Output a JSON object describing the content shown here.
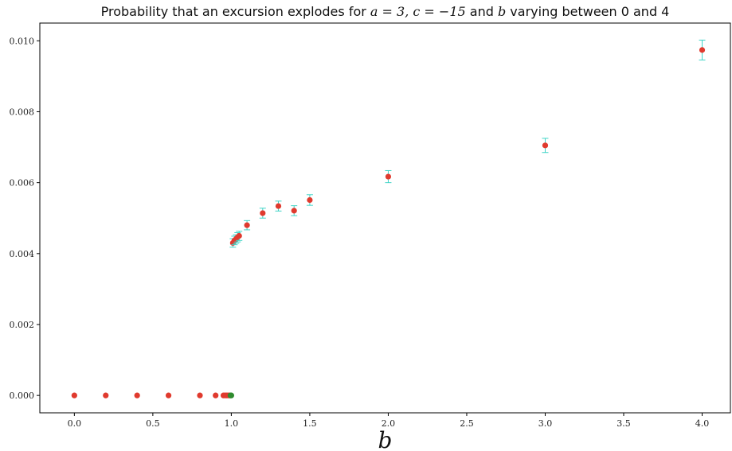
{
  "chart_data": {
    "type": "scatter",
    "title_parts": [
      {
        "text": "Probability that an excursion explodes for ",
        "math": false
      },
      {
        "text": "a = 3, c = −15",
        "math": true
      },
      {
        "text": " and ",
        "math": false
      },
      {
        "text": "b",
        "math": true
      },
      {
        "text": " varying between 0 and 4",
        "math": false
      }
    ],
    "title": "Probability that an excursion explodes for a = 3, c = −15 and b varying between 0 and 4",
    "xlabel": "b",
    "ylabel": "",
    "xlim": [
      -0.22,
      4.18
    ],
    "ylim": [
      -0.00049,
      0.0105
    ],
    "xticks": [
      0.0,
      0.5,
      1.0,
      1.5,
      2.0,
      2.5,
      3.0,
      3.5,
      4.0
    ],
    "xtick_labels": [
      "0.0",
      "0.5",
      "1.0",
      "1.5",
      "2.0",
      "2.5",
      "3.0",
      "3.5",
      "4.0"
    ],
    "yticks": [
      0.0,
      0.002,
      0.004,
      0.006,
      0.008,
      0.01
    ],
    "ytick_labels": [
      "0.000",
      "0.002",
      "0.004",
      "0.006",
      "0.008",
      "0.010"
    ],
    "grid": false,
    "legend": "none",
    "colors": {
      "marker": "#e03a2e",
      "errorbar": "#3fd4c6",
      "zero_estimate": "#2e8b2e",
      "axis": "#000000"
    },
    "series": [
      {
        "color": "#e03a2e",
        "marker": "circle",
        "x": [
          0.0,
          0.2,
          0.4,
          0.6,
          0.8,
          0.9,
          0.95,
          0.96,
          0.97,
          0.98,
          0.99,
          1.01,
          1.02,
          1.03,
          1.04,
          1.05,
          1.1,
          1.2,
          1.3,
          1.4,
          1.5,
          2.0,
          3.0,
          4.0
        ],
        "y": [
          0.0,
          0.0,
          0.0,
          0.0,
          0.0,
          0.0,
          0.0,
          0.0,
          0.0,
          0.0,
          0.0,
          0.0043,
          0.00437,
          0.00441,
          0.00446,
          0.0045,
          0.0048,
          0.00514,
          0.00534,
          0.00521,
          0.00551,
          0.00617,
          0.00705,
          0.00974
        ],
        "err": [
          0,
          0,
          0,
          0,
          0,
          0,
          0,
          0,
          0,
          0,
          0,
          0.00012,
          0.00012,
          0.00012,
          0.00013,
          0.00013,
          0.00013,
          0.00014,
          0.00014,
          0.00014,
          0.00015,
          0.00017,
          0.0002,
          0.00028
        ]
      },
      {
        "color": "#2e8b2e",
        "marker": "circle",
        "x": [
          0.995,
          1.0
        ],
        "y": [
          0.0,
          0.0
        ],
        "err": [
          0,
          0
        ]
      }
    ]
  }
}
